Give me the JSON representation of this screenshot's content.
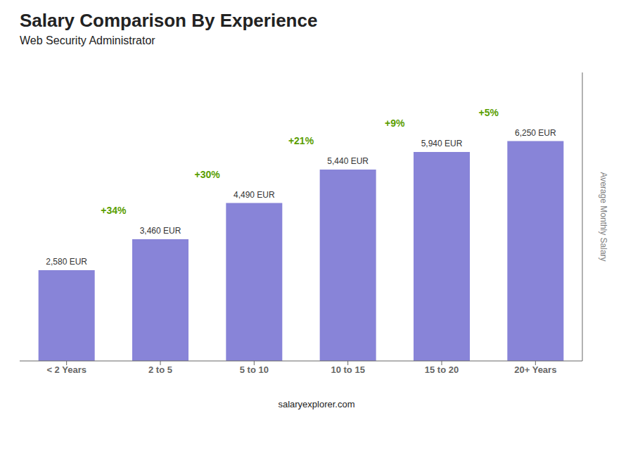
{
  "chart_data": {
    "type": "bar",
    "title": "Salary Comparison By Experience",
    "subtitle": "Web Security Administrator",
    "categories": [
      "< 2 Years",
      "2 to 5",
      "5 to 10",
      "10 to 15",
      "15 to 20",
      "20+ Years"
    ],
    "values": [
      2580,
      3460,
      4490,
      5440,
      5940,
      6250
    ],
    "value_labels": [
      "2,580 EUR",
      "3,460 EUR",
      "4,490 EUR",
      "5,440 EUR",
      "5,940 EUR",
      "6,250 EUR"
    ],
    "data_labels": true,
    "annotations": [
      "+34%",
      "+30%",
      "+21%",
      "+9%",
      "+5%"
    ],
    "y_label": "Average Monthly Salary",
    "footer": "salaryexplorer.com",
    "ylim": [
      0,
      8200
    ],
    "tick_labels": "x",
    "grid": false
  }
}
